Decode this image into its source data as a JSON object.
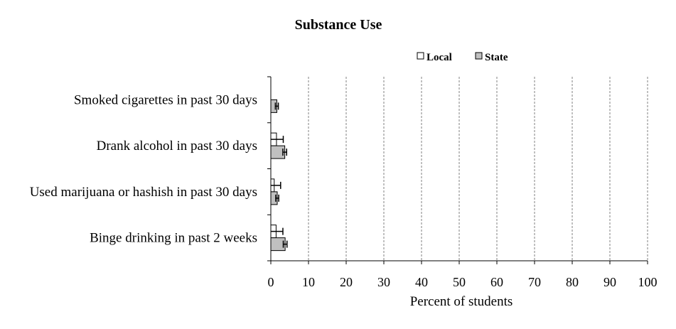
{
  "chart_data": {
    "type": "bar",
    "orientation": "horizontal",
    "title": "Substance Use",
    "xlabel": "Percent of students",
    "ylabel": "",
    "xlim": [
      0,
      100
    ],
    "xticks": [
      0,
      10,
      20,
      30,
      40,
      50,
      60,
      70,
      80,
      90,
      100
    ],
    "categories": [
      "Smoked cigarettes in past 30 days",
      "Drank alcohol in past 30 days",
      "Used marijuana or hashish in past 30 days",
      "Binge drinking in past 2 weeks"
    ],
    "series": [
      {
        "name": "Local",
        "color": "#ffffff",
        "values": [
          0,
          1.5,
          0.9,
          1.4
        ],
        "error_low": [
          0,
          1.5,
          0.9,
          1.4
        ],
        "error_high": [
          0,
          1.8,
          1.7,
          1.8
        ]
      },
      {
        "name": "State",
        "color": "#c0c0c0",
        "values": [
          1.6,
          3.7,
          1.7,
          3.8
        ],
        "error_low": [
          0.4,
          0.5,
          0.4,
          0.5
        ],
        "error_high": [
          0.4,
          0.5,
          0.4,
          0.5
        ]
      }
    ],
    "grid": "vertical dashed",
    "legend": "top"
  }
}
